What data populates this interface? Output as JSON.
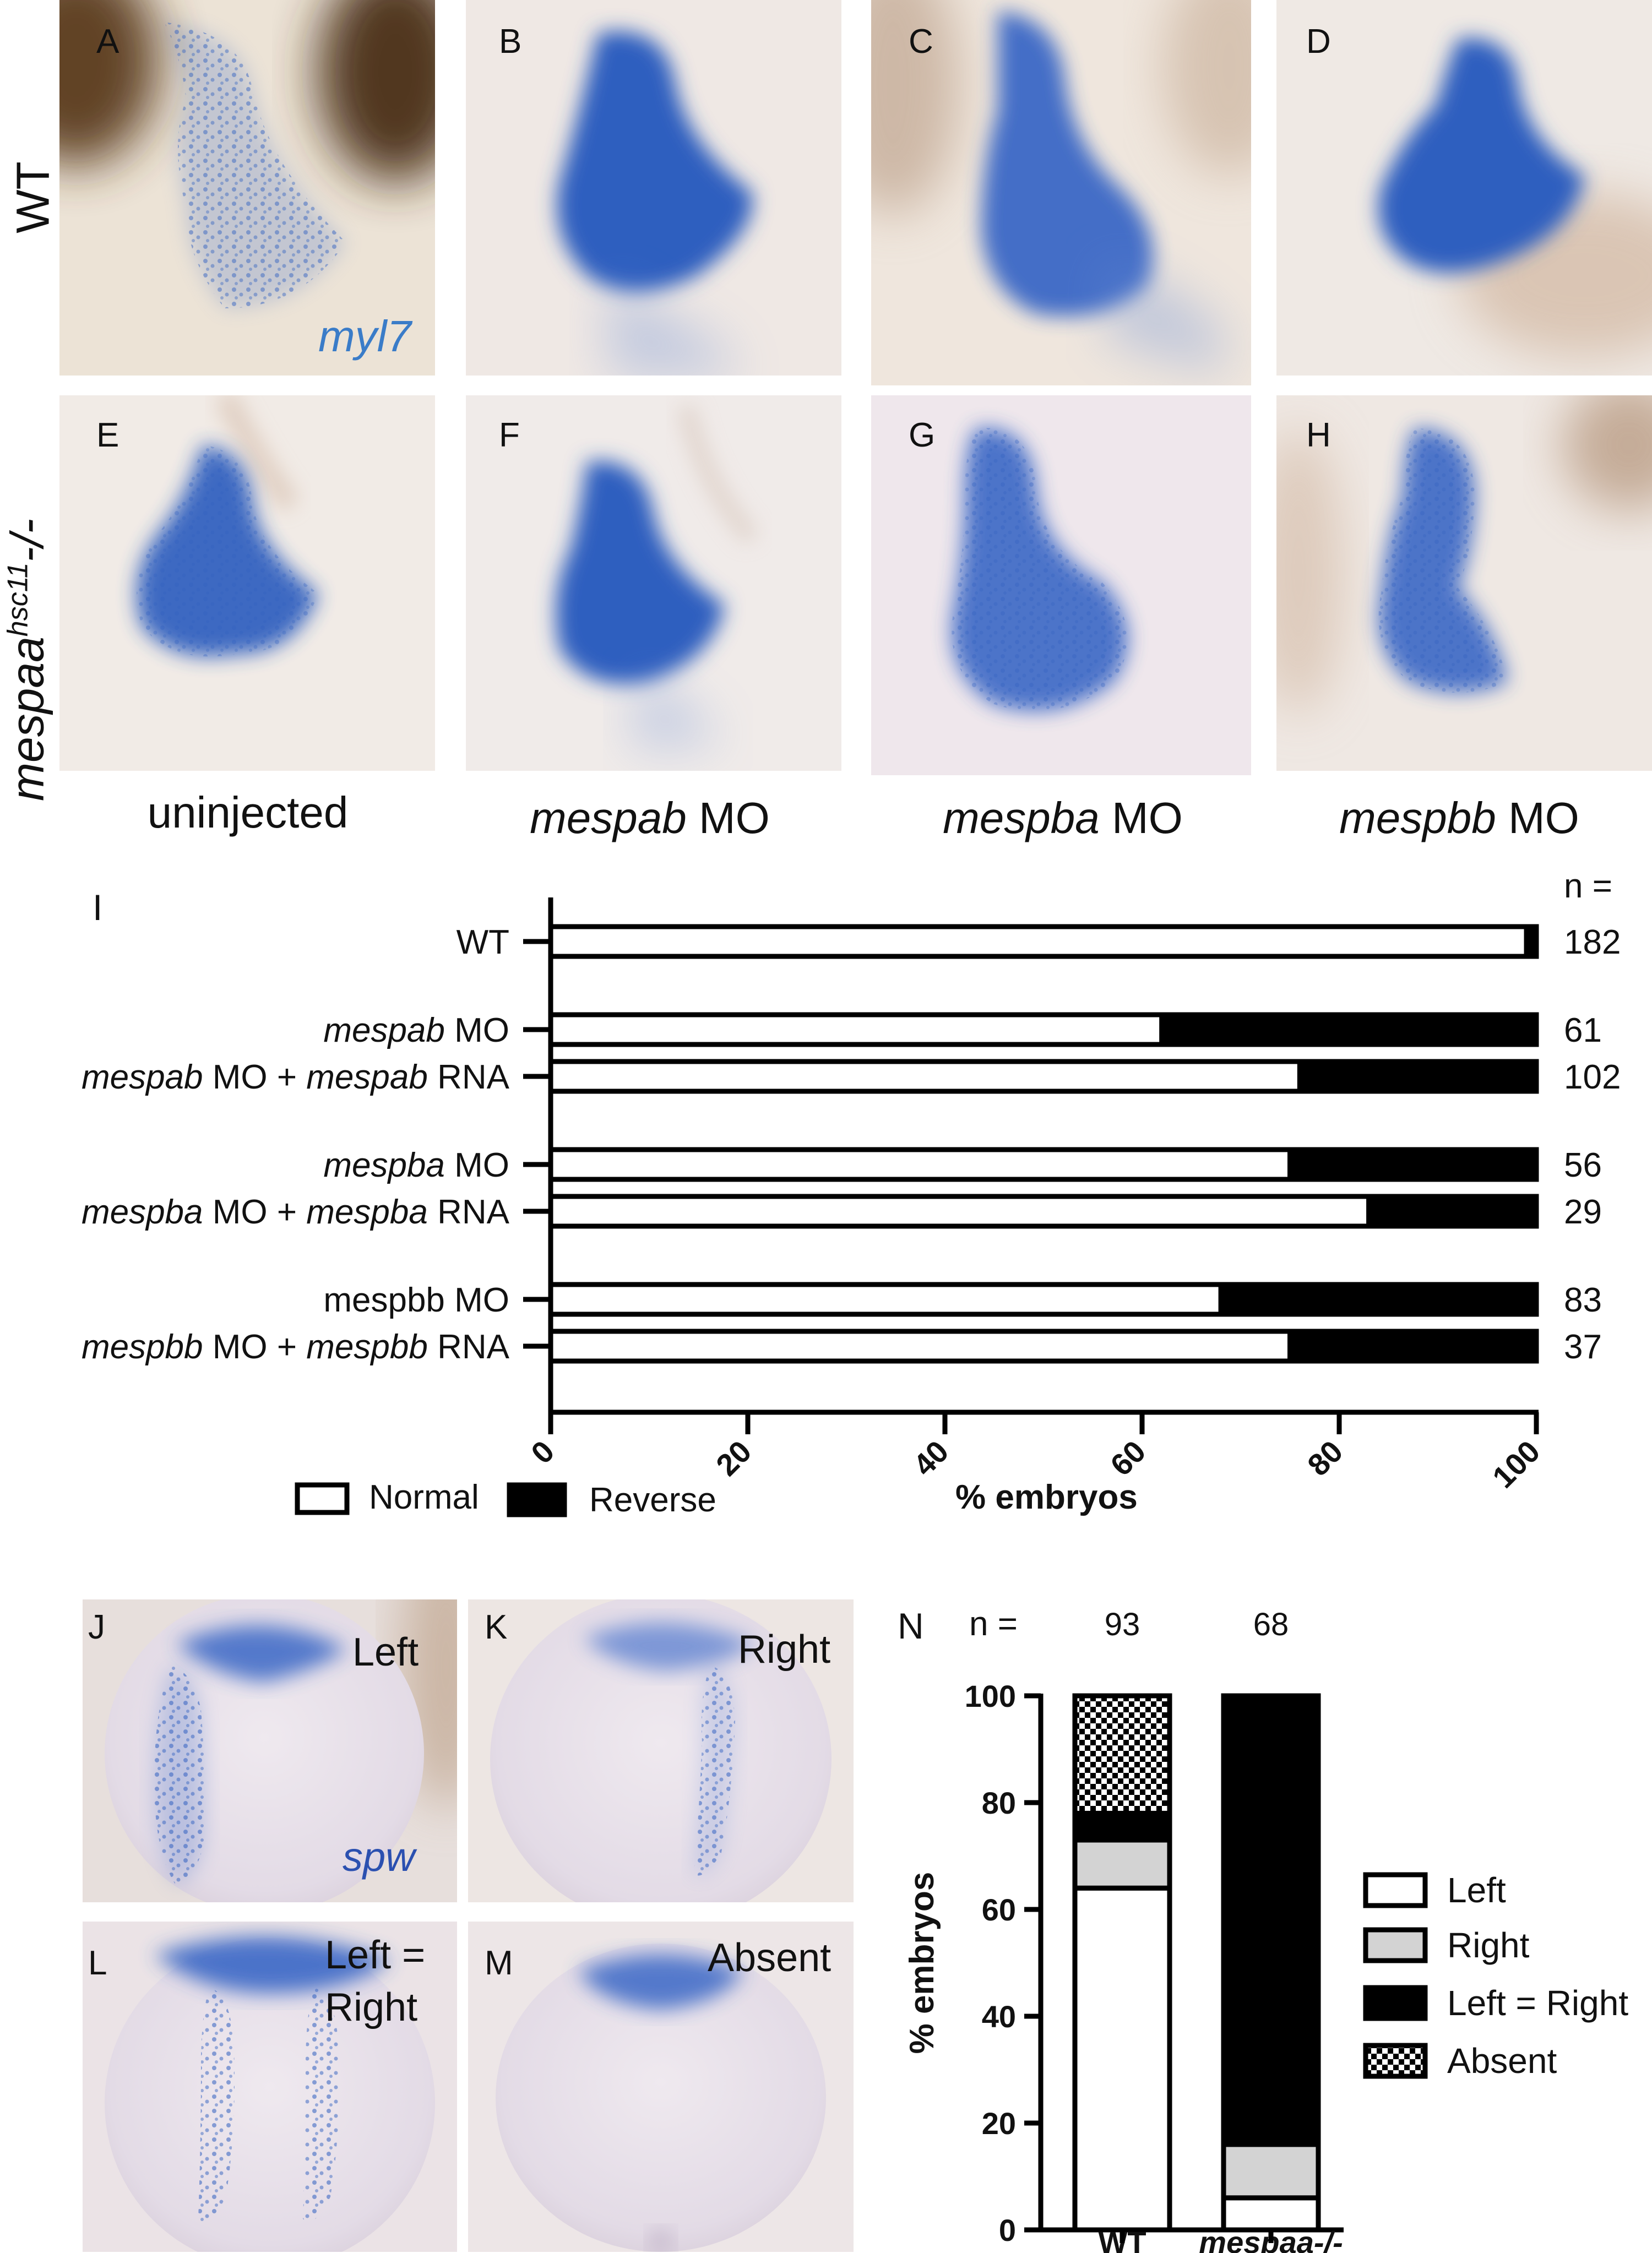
{
  "row_labels": {
    "wt": "WT",
    "mutant_base": "mespaa",
    "mutant_sup": "hsc11",
    "mutant_suffix": "-/-"
  },
  "gene_labels": {
    "myl7": "myl7",
    "spw": "spw"
  },
  "panel_letters": [
    "A",
    "B",
    "C",
    "D",
    "E",
    "F",
    "G",
    "H",
    "I",
    "J",
    "K",
    "L",
    "M",
    "N"
  ],
  "column_labels": {
    "uninjected": "uninjected",
    "mespab": {
      "gene": "mespab",
      "suffix": "MO"
    },
    "mespba": {
      "gene": "mespba",
      "suffix": "MO"
    },
    "mespbb": {
      "gene": "mespbb",
      "suffix": "MO"
    }
  },
  "spw_labels": {
    "left": "Left",
    "right": "Right",
    "left_eq_right_line1": "Left =",
    "left_eq_right_line2": "Right",
    "absent": "Absent"
  },
  "colors": {
    "stain": "#2f5fbf",
    "stain_light": "#6c8fd6",
    "tissue": "#f1ece6",
    "pigment": "#5a3a1e",
    "gene_label": "#3a7cc8"
  },
  "chart_data": [
    {
      "type": "bar",
      "orientation": "horizontal",
      "stacked": true,
      "panel": "I",
      "n_header": "n =",
      "categories": [
        {
          "parts": [
            {
              "t": "WT",
              "i": false
            }
          ],
          "n": "182"
        },
        {
          "parts": [
            {
              "t": "mespab",
              "i": true
            },
            {
              "t": " MO",
              "i": false
            }
          ],
          "n": "61"
        },
        {
          "parts": [
            {
              "t": "mespab",
              "i": true
            },
            {
              "t": " MO + ",
              "i": false
            },
            {
              "t": "mespab",
              "i": true
            },
            {
              "t": " RNA",
              "i": false
            }
          ],
          "n": "102"
        },
        {
          "parts": [
            {
              "t": "mespba",
              "i": true
            },
            {
              "t": " MO",
              "i": false
            }
          ],
          "n": "56"
        },
        {
          "parts": [
            {
              "t": "mespba",
              "i": true
            },
            {
              "t": " MO + ",
              "i": false
            },
            {
              "t": "mespba",
              "i": true
            },
            {
              "t": " RNA",
              "i": false
            }
          ],
          "n": "29"
        },
        {
          "parts": [
            {
              "t": "mespbb MO",
              "i": false
            }
          ],
          "n": "83"
        },
        {
          "parts": [
            {
              "t": "mespbb",
              "i": true
            },
            {
              "t": " MO + ",
              "i": false
            },
            {
              "t": "mespbb",
              "i": true
            },
            {
              "t": " RNA",
              "i": false
            }
          ],
          "n": "37"
        }
      ],
      "series": [
        {
          "name": "Normal",
          "values": [
            99,
            62,
            76,
            75,
            83,
            68,
            75
          ]
        },
        {
          "name": "Reverse",
          "values": [
            1,
            38,
            24,
            25,
            17,
            32,
            25
          ]
        }
      ],
      "xlabel": "% embryos",
      "xlim": [
        0,
        100
      ],
      "xticks": [
        "0",
        "20",
        "40",
        "60",
        "80",
        "100"
      ],
      "legend_position": "bottom-left"
    },
    {
      "type": "bar",
      "orientation": "vertical",
      "stacked": true,
      "panel": "N",
      "n_header": "n =",
      "categories": [
        {
          "label": "WT",
          "n": "93"
        },
        {
          "label": "mespaa-/-",
          "n": "68"
        }
      ],
      "series": [
        {
          "name": "Left",
          "values": [
            64,
            6
          ]
        },
        {
          "name": "Right",
          "values": [
            9,
            10
          ]
        },
        {
          "name": "Left = Right",
          "values": [
            5,
            84
          ]
        },
        {
          "name": "Absent",
          "values": [
            22,
            0
          ]
        }
      ],
      "ylabel": "% embryos",
      "ylim": [
        0,
        100
      ],
      "yticks": [
        "0",
        "20",
        "40",
        "60",
        "80",
        "100"
      ],
      "legend_position": "right"
    }
  ]
}
